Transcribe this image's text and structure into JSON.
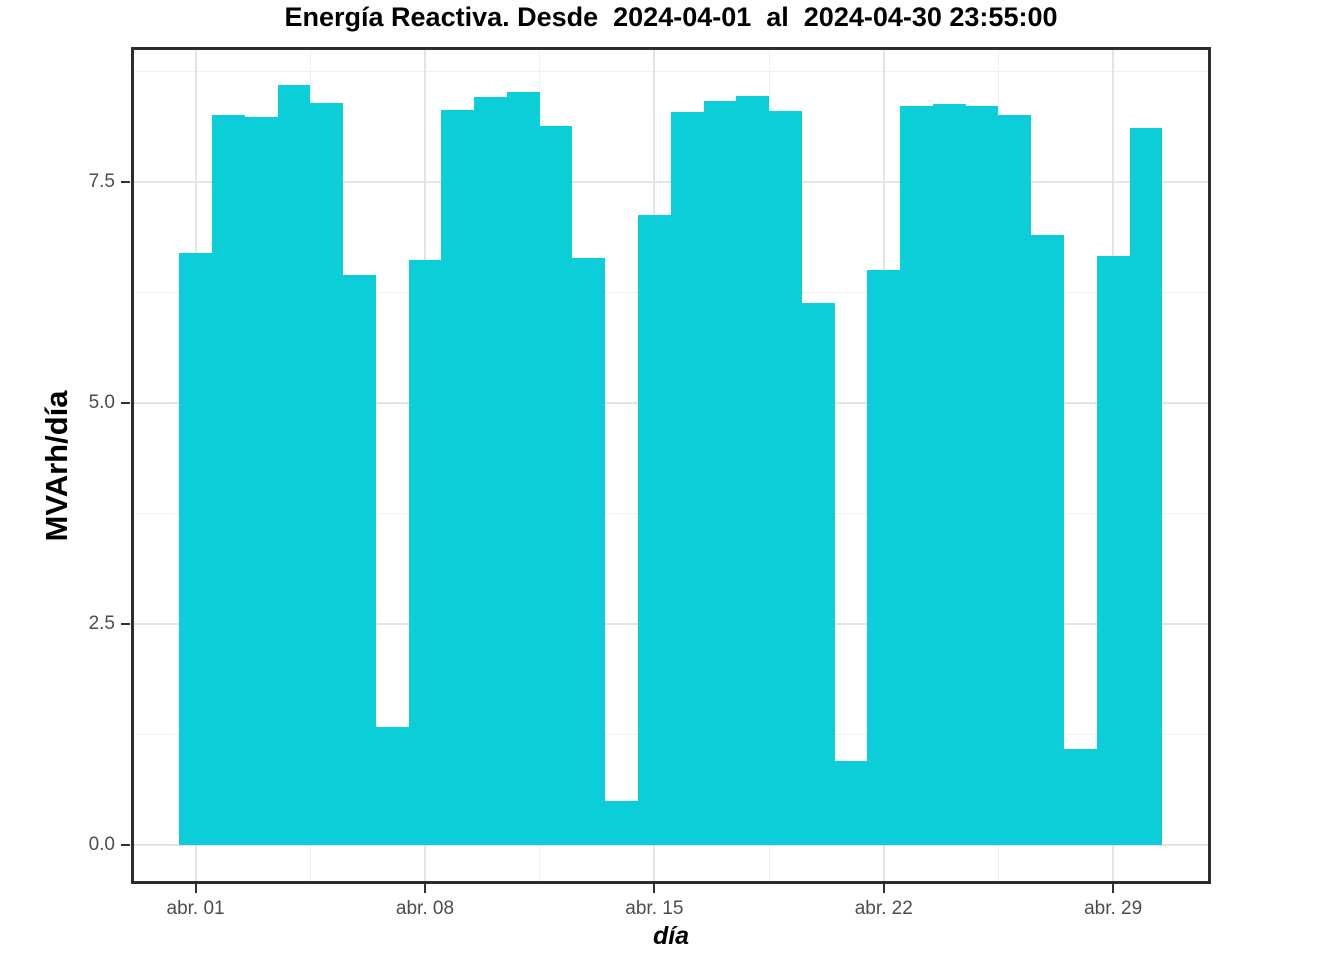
{
  "chart_data": {
    "type": "bar",
    "title": "Energía Reactiva. Desde  2024-04-01  al  2024-04-30 23:55:00",
    "xlabel": "día",
    "ylabel": "MVArh/día",
    "x_days": [
      1,
      2,
      3,
      4,
      5,
      6,
      7,
      8,
      9,
      10,
      11,
      12,
      13,
      14,
      15,
      16,
      17,
      18,
      19,
      20,
      21,
      22,
      23,
      24,
      25,
      26,
      27,
      28,
      29,
      30
    ],
    "values": [
      6.7,
      8.26,
      8.23,
      8.6,
      8.39,
      6.45,
      1.33,
      6.62,
      8.31,
      8.46,
      8.52,
      8.13,
      6.64,
      0.5,
      7.13,
      8.29,
      8.42,
      8.47,
      8.3,
      6.13,
      0.95,
      6.51,
      8.36,
      8.38,
      8.36,
      8.26,
      6.9,
      1.09,
      6.66,
      8.11
    ],
    "x_tick_labels": [
      "abr. 01",
      "abr. 08",
      "abr. 15",
      "abr. 22",
      "abr. 29"
    ],
    "x_tick_days": [
      1,
      8,
      15,
      22,
      29
    ],
    "y_tick_labels": [
      "0.0",
      "2.5",
      "5.0",
      "7.5"
    ],
    "y_ticks": [
      0.0,
      2.5,
      5.0,
      7.5
    ],
    "y_minor_ticks": [
      1.25,
      3.75,
      6.25,
      8.75
    ],
    "ylim": [
      -0.44,
      9.03
    ],
    "grid": true,
    "legend": false,
    "bar_color": "#0cced9",
    "grid_major_color": "#e4e4e4",
    "grid_minor_color": "#f0f0f0",
    "panel_border_color": "#2d2d2d",
    "tick_label_color": "#4d4d4d",
    "axis_tick_color": "#333333"
  }
}
